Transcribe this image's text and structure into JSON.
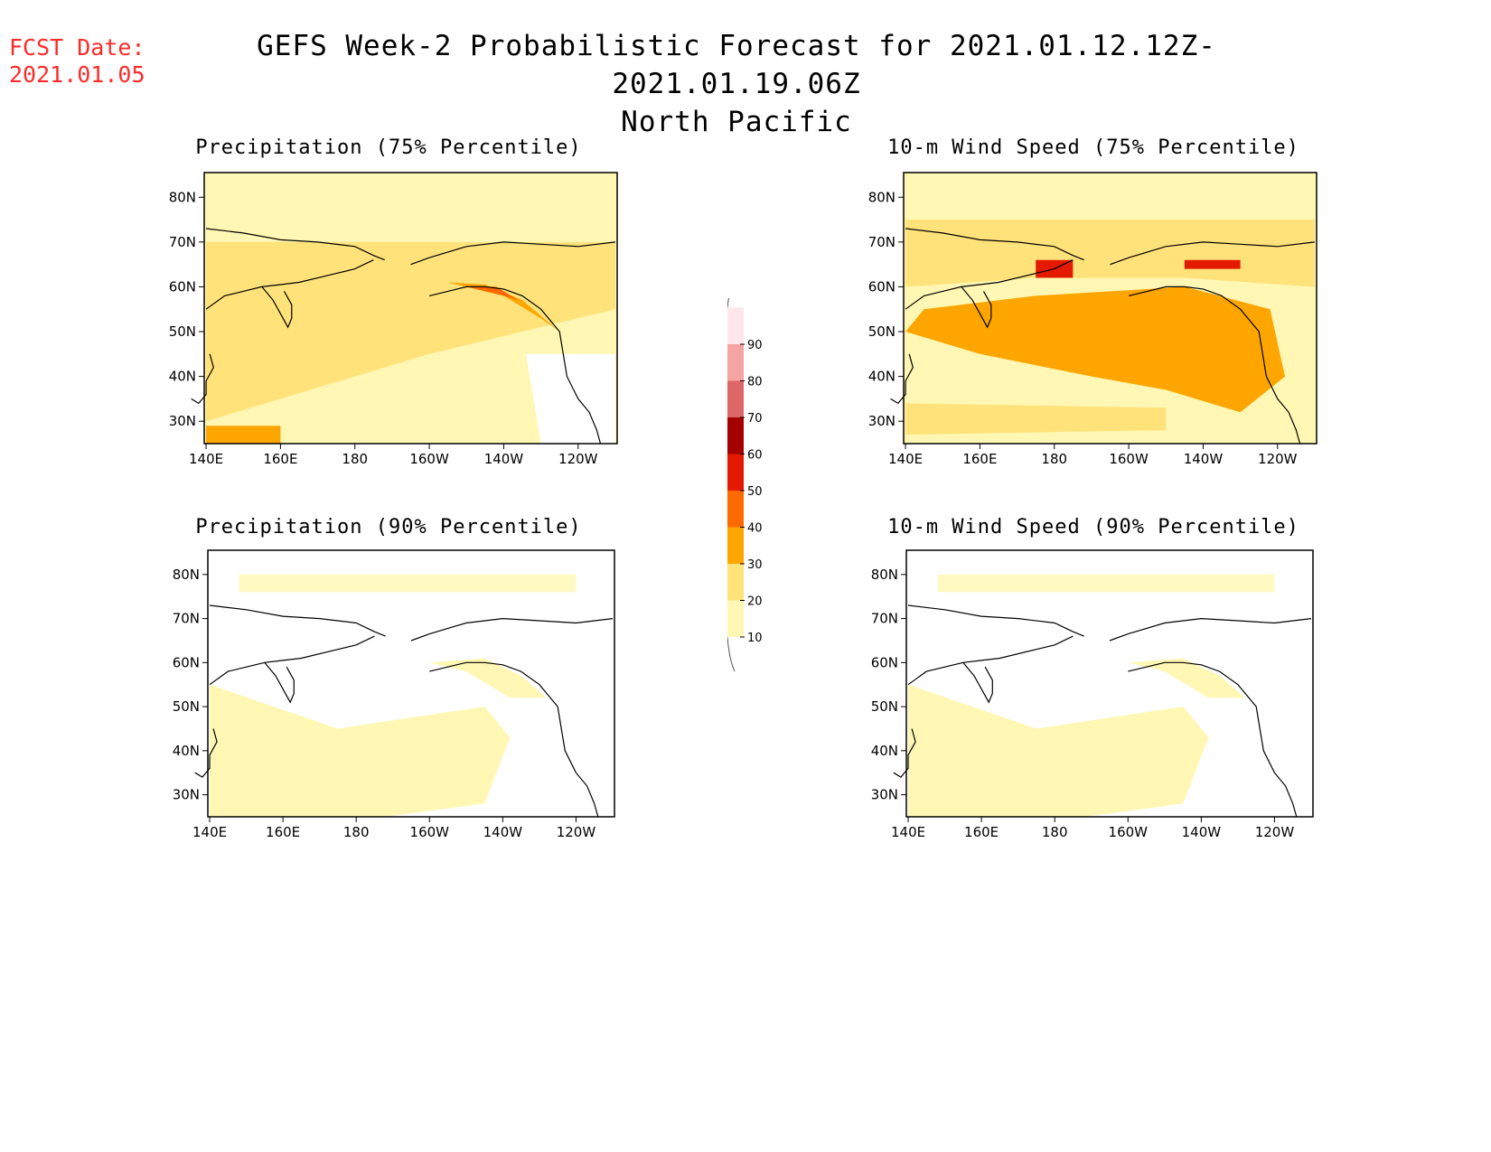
{
  "header": {
    "fcst_label": "FCST Date:",
    "fcst_date": "2021.01.05",
    "title_line1": "GEFS Week-2 Probabilistic Forecast for 2021.01.12.12Z-2021.01.19.06Z",
    "title_line2": "North Pacific"
  },
  "panels": [
    {
      "id": "precip75",
      "title": "Precipitation (75% Percentile)",
      "level": 1
    },
    {
      "id": "wind75",
      "title": "10-m Wind Speed (75% Percentile)",
      "level": 2
    },
    {
      "id": "precip90",
      "title": "Precipitation (90% Percentile)",
      "level": 0
    },
    {
      "id": "wind90",
      "title": "10-m Wind Speed (90% Percentile)",
      "level": 0
    }
  ],
  "axes": {
    "lat_labels": [
      "80N",
      "70N",
      "60N",
      "50N",
      "40N",
      "30N"
    ],
    "lon_labels": [
      "140E",
      "160E",
      "180",
      "160W",
      "140W",
      "120W"
    ]
  },
  "colorbar": {
    "levels": [
      "10",
      "20",
      "30",
      "40",
      "50",
      "60",
      "70",
      "80",
      "90"
    ],
    "colors": [
      "#fff7b3",
      "#ffe27a",
      "#ffa500",
      "#ff6a00",
      "#e41a00",
      "#a50000",
      "#de6666",
      "#f5a3a3",
      "#ffe6ea"
    ]
  }
}
